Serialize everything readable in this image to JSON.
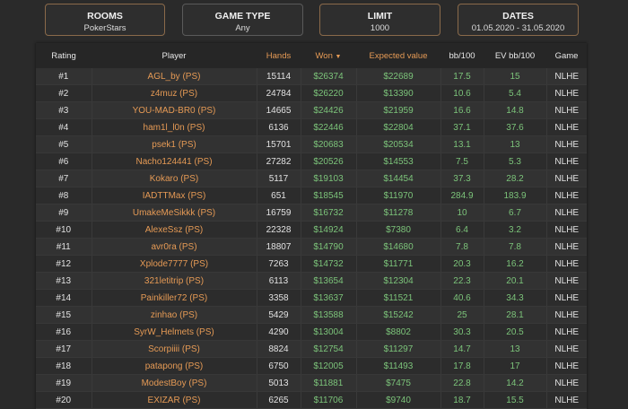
{
  "filters": [
    {
      "title": "ROOMS",
      "value": "PokerStars"
    },
    {
      "title": "GAME TYPE",
      "value": "Any"
    },
    {
      "title": "LIMIT",
      "value": "1000"
    },
    {
      "title": "DATES",
      "value": "01.05.2020 - 31.05.2020"
    }
  ],
  "table": {
    "headers": {
      "rating": "Rating",
      "player": "Player",
      "hands": "Hands",
      "won": "Won",
      "ev": "Expected value",
      "bb": "bb/100",
      "evbb": "EV bb/100",
      "game": "Game"
    },
    "sort_icon": "caret-down-icon",
    "rows": [
      [
        "#1",
        "AGL_by (PS)",
        "15114",
        "$26374",
        "$22689",
        "17.5",
        "15",
        "NLHE"
      ],
      [
        "#2",
        "z4muz (PS)",
        "24784",
        "$26220",
        "$13390",
        "10.6",
        "5.4",
        "NLHE"
      ],
      [
        "#3",
        "YOU-MAD-BR0 (PS)",
        "14665",
        "$24426",
        "$21959",
        "16.6",
        "14.8",
        "NLHE"
      ],
      [
        "#4",
        "ham1l_l0n (PS)",
        "6136",
        "$22446",
        "$22804",
        "37.1",
        "37.6",
        "NLHE"
      ],
      [
        "#5",
        "psek1 (PS)",
        "15701",
        "$20683",
        "$20534",
        "13.1",
        "13",
        "NLHE"
      ],
      [
        "#6",
        "Nacho124441 (PS)",
        "27282",
        "$20526",
        "$14553",
        "7.5",
        "5.3",
        "NLHE"
      ],
      [
        "#7",
        "Kokaro (PS)",
        "5117",
        "$19103",
        "$14454",
        "37.3",
        "28.2",
        "NLHE"
      ],
      [
        "#8",
        "IADTTMax (PS)",
        "651",
        "$18545",
        "$11970",
        "284.9",
        "183.9",
        "NLHE"
      ],
      [
        "#9",
        "UmakeMeSikkk (PS)",
        "16759",
        "$16732",
        "$11278",
        "10",
        "6.7",
        "NLHE"
      ],
      [
        "#10",
        "AlexeSsz (PS)",
        "22328",
        "$14924",
        "$7380",
        "6.4",
        "3.2",
        "NLHE"
      ],
      [
        "#11",
        "avr0ra (PS)",
        "18807",
        "$14790",
        "$14680",
        "7.8",
        "7.8",
        "NLHE"
      ],
      [
        "#12",
        "Xplode7777 (PS)",
        "7263",
        "$14732",
        "$11771",
        "20.3",
        "16.2",
        "NLHE"
      ],
      [
        "#13",
        "321letitrip (PS)",
        "6113",
        "$13654",
        "$12304",
        "22.3",
        "20.1",
        "NLHE"
      ],
      [
        "#14",
        "Painkiller72 (PS)",
        "3358",
        "$13637",
        "$11521",
        "40.6",
        "34.3",
        "NLHE"
      ],
      [
        "#15",
        "zinhao (PS)",
        "5429",
        "$13588",
        "$15242",
        "25",
        "28.1",
        "NLHE"
      ],
      [
        "#16",
        "SyrW_Helmets (PS)",
        "4290",
        "$13004",
        "$8802",
        "30.3",
        "20.5",
        "NLHE"
      ],
      [
        "#17",
        "Scorpiiii (PS)",
        "8824",
        "$12754",
        "$11297",
        "14.7",
        "13",
        "NLHE"
      ],
      [
        "#18",
        "patapong (PS)",
        "6750",
        "$12005",
        "$11493",
        "17.8",
        "17",
        "NLHE"
      ],
      [
        "#19",
        "ModestBoy (PS)",
        "5013",
        "$11881",
        "$7475",
        "22.8",
        "14.2",
        "NLHE"
      ],
      [
        "#20",
        "EXIZAR (PS)",
        "6265",
        "$11706",
        "$9740",
        "18.7",
        "15.5",
        "NLHE"
      ]
    ]
  }
}
